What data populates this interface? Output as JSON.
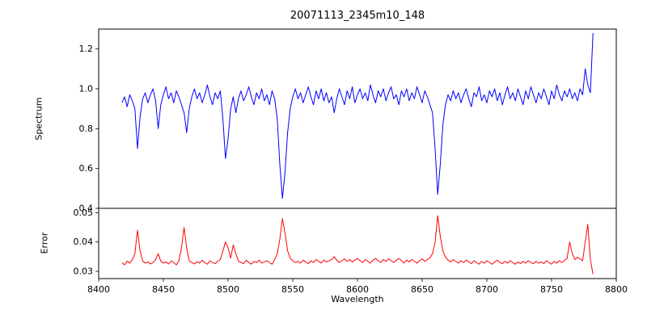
{
  "chart_data": {
    "type": "line",
    "title": "20071113_2345m10_148",
    "xlabel": "Wavelength",
    "grid": false,
    "legend": "none",
    "xlim": [
      8400,
      8800
    ],
    "xticks": {
      "values": [
        8400,
        8450,
        8500,
        8550,
        8600,
        8650,
        8700,
        8750,
        8800
      ],
      "labels": [
        "8400",
        "8450",
        "8500",
        "8550",
        "8600",
        "8650",
        "8700",
        "8750",
        "8800"
      ]
    },
    "subplots": [
      {
        "name": "spectrum",
        "ylabel": "Spectrum",
        "ylim": [
          0.4,
          1.3
        ],
        "yticks": {
          "values": [
            0.4,
            0.6,
            0.8,
            1.0,
            1.2
          ],
          "labels": [
            "0.4",
            "0.6",
            "0.8",
            "1.0",
            "1.2"
          ]
        },
        "color": "#0000ff",
        "x_start": 8418,
        "x_step": 2,
        "y": [
          0.93,
          0.96,
          0.91,
          0.97,
          0.94,
          0.9,
          0.7,
          0.86,
          0.95,
          0.98,
          0.93,
          0.97,
          1.0,
          0.94,
          0.8,
          0.92,
          0.97,
          1.01,
          0.95,
          0.98,
          0.93,
          0.99,
          0.96,
          0.92,
          0.88,
          0.78,
          0.9,
          0.96,
          1.0,
          0.95,
          0.98,
          0.93,
          0.97,
          1.02,
          0.96,
          0.92,
          0.98,
          0.95,
          0.99,
          0.85,
          0.65,
          0.75,
          0.9,
          0.96,
          0.88,
          0.95,
          0.99,
          0.94,
          0.97,
          1.01,
          0.96,
          0.92,
          0.98,
          0.95,
          1.0,
          0.94,
          0.97,
          0.92,
          0.99,
          0.95,
          0.85,
          0.62,
          0.45,
          0.58,
          0.78,
          0.9,
          0.96,
          1.0,
          0.95,
          0.98,
          0.93,
          0.97,
          1.01,
          0.96,
          0.92,
          0.99,
          0.95,
          1.0,
          0.94,
          0.98,
          0.93,
          0.96,
          0.88,
          0.95,
          1.0,
          0.96,
          0.92,
          0.99,
          0.95,
          1.01,
          0.93,
          0.97,
          1.0,
          0.95,
          0.98,
          0.94,
          1.02,
          0.97,
          0.93,
          0.99,
          0.96,
          1.0,
          0.94,
          0.98,
          1.01,
          0.95,
          0.97,
          0.92,
          0.99,
          0.96,
          1.0,
          0.94,
          0.98,
          0.95,
          1.01,
          0.97,
          0.93,
          0.99,
          0.96,
          0.92,
          0.88,
          0.7,
          0.47,
          0.62,
          0.82,
          0.92,
          0.97,
          0.94,
          0.99,
          0.95,
          0.98,
          0.93,
          0.97,
          1.0,
          0.95,
          0.91,
          0.98,
          0.96,
          1.01,
          0.94,
          0.97,
          0.93,
          0.99,
          0.96,
          1.0,
          0.94,
          0.98,
          0.92,
          0.97,
          1.01,
          0.95,
          0.98,
          0.94,
          1.0,
          0.96,
          0.92,
          0.99,
          0.95,
          1.01,
          0.97,
          0.93,
          0.98,
          0.95,
          1.0,
          0.96,
          0.92,
          0.99,
          0.95,
          1.02,
          0.97,
          0.94,
          0.99,
          0.96,
          1.0,
          0.95,
          0.98,
          0.94,
          1.0,
          0.97,
          1.1,
          1.02,
          0.98,
          1.28
        ]
      },
      {
        "name": "error",
        "ylabel": "Error",
        "ylim": [
          0.0275,
          0.0515
        ],
        "yticks": {
          "values": [
            0.03,
            0.04,
            0.05
          ],
          "labels": [
            "0.03",
            "0.04",
            "0.05"
          ]
        },
        "color": "#ff0000",
        "x_start": 8418,
        "x_step": 2,
        "y": [
          0.033,
          0.0322,
          0.0335,
          0.0328,
          0.034,
          0.036,
          0.044,
          0.037,
          0.0335,
          0.0328,
          0.0332,
          0.0325,
          0.033,
          0.034,
          0.036,
          0.0335,
          0.0328,
          0.0332,
          0.0325,
          0.0335,
          0.033,
          0.0322,
          0.0336,
          0.038,
          0.045,
          0.038,
          0.0335,
          0.033,
          0.0325,
          0.0333,
          0.0328,
          0.0338,
          0.033,
          0.0324,
          0.0336,
          0.033,
          0.0326,
          0.0334,
          0.034,
          0.037,
          0.04,
          0.038,
          0.0345,
          0.039,
          0.036,
          0.0335,
          0.033,
          0.0326,
          0.0338,
          0.033,
          0.0324,
          0.0334,
          0.033,
          0.0338,
          0.0328,
          0.0332,
          0.0336,
          0.033,
          0.0324,
          0.034,
          0.036,
          0.041,
          0.048,
          0.043,
          0.037,
          0.0345,
          0.0336,
          0.033,
          0.0334,
          0.0328,
          0.0338,
          0.0332,
          0.0326,
          0.0336,
          0.033,
          0.034,
          0.0334,
          0.0328,
          0.0338,
          0.0332,
          0.0336,
          0.034,
          0.035,
          0.0338,
          0.033,
          0.0336,
          0.0342,
          0.0334,
          0.034,
          0.0332,
          0.0338,
          0.0344,
          0.0336,
          0.033,
          0.034,
          0.0334,
          0.0328,
          0.0338,
          0.0344,
          0.0336,
          0.033,
          0.034,
          0.0334,
          0.0342,
          0.0336,
          0.033,
          0.0338,
          0.0344,
          0.0336,
          0.0328,
          0.0338,
          0.0332,
          0.034,
          0.0334,
          0.0328,
          0.0336,
          0.0342,
          0.0334,
          0.034,
          0.0346,
          0.036,
          0.04,
          0.049,
          0.042,
          0.037,
          0.0348,
          0.0338,
          0.0332,
          0.034,
          0.0334,
          0.0328,
          0.0336,
          0.033,
          0.0338,
          0.0332,
          0.0326,
          0.0336,
          0.033,
          0.0324,
          0.0334,
          0.0328,
          0.0336,
          0.033,
          0.0324,
          0.0332,
          0.0338,
          0.033,
          0.0326,
          0.0334,
          0.0328,
          0.0336,
          0.033,
          0.0324,
          0.0332,
          0.0326,
          0.0334,
          0.0328,
          0.0336,
          0.033,
          0.0326,
          0.0334,
          0.0328,
          0.0332,
          0.0326,
          0.0336,
          0.033,
          0.0324,
          0.0334,
          0.0328,
          0.0336,
          0.033,
          0.0338,
          0.0344,
          0.04,
          0.036,
          0.034,
          0.0348,
          0.0342,
          0.0336,
          0.04,
          0.046,
          0.034,
          0.029
        ]
      }
    ]
  }
}
